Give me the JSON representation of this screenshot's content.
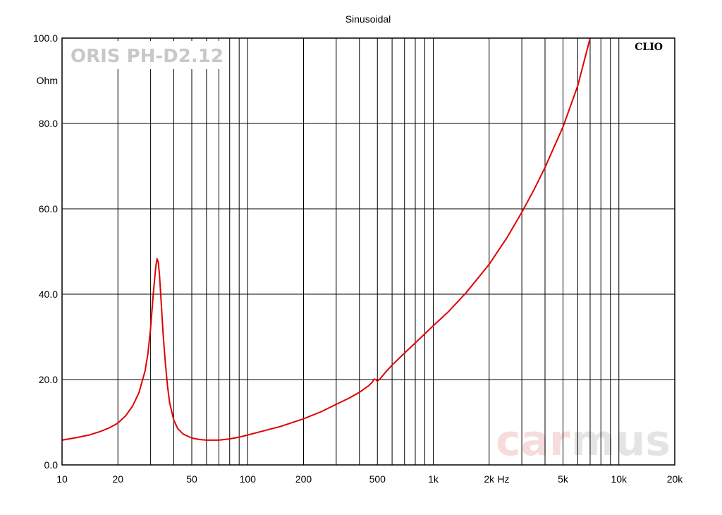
{
  "chart_data": {
    "type": "line",
    "title": "Sinusoidal",
    "brand": "CLIO",
    "model": "ORIS PH-D2.12",
    "watermark": {
      "part1": "car",
      "part2": "mus"
    },
    "xlabel": "Hz",
    "ylabel": "Ohm",
    "x_scale": "log",
    "xlim": [
      10,
      20000
    ],
    "ylim": [
      0,
      100
    ],
    "grid": true,
    "x_ticks": [
      10,
      20,
      50,
      100,
      200,
      500,
      1000,
      2000,
      5000,
      10000,
      20000
    ],
    "x_tick_labels": [
      "10",
      "20",
      "50",
      "100",
      "200",
      "500",
      "1k",
      "2k",
      "5k",
      "10k",
      "20k"
    ],
    "y_ticks": [
      0,
      20,
      40,
      60,
      80,
      100
    ],
    "y_tick_labels": [
      "0.0",
      "20.0",
      "40.0",
      "60.0",
      "80.0",
      "100.0"
    ],
    "series": [
      {
        "color": "#e00000",
        "x": [
          10,
          12,
          14,
          16,
          18,
          20,
          22,
          24,
          26,
          28,
          29,
          30,
          31,
          32,
          32.5,
          33,
          33.5,
          34,
          35,
          36,
          37,
          38,
          40,
          42,
          45,
          50,
          55,
          60,
          70,
          80,
          90,
          100,
          120,
          150,
          200,
          250,
          300,
          350,
          400,
          450,
          470,
          480,
          490,
          500,
          520,
          550,
          600,
          700,
          800,
          1000,
          1200,
          1500,
          2000,
          2500,
          3000,
          3500,
          4000,
          5000,
          6000,
          7000
        ],
        "y": [
          5.8,
          6.4,
          7.0,
          7.8,
          8.7,
          9.8,
          11.5,
          13.8,
          17.0,
          22.0,
          26.0,
          32.0,
          40.0,
          46.5,
          48.3,
          47.5,
          44.5,
          40.0,
          31.0,
          24.0,
          18.5,
          14.5,
          10.5,
          8.5,
          7.2,
          6.3,
          5.95,
          5.8,
          5.8,
          6.1,
          6.5,
          7.0,
          7.9,
          9.0,
          10.8,
          12.5,
          14.2,
          15.6,
          17.0,
          18.6,
          19.4,
          20.1,
          20.0,
          19.6,
          20.3,
          21.6,
          23.4,
          26.2,
          28.6,
          32.6,
          35.8,
          40.3,
          47.0,
          53.3,
          59.2,
          64.6,
          69.7,
          79.2,
          88.8,
          100.0
        ]
      }
    ]
  }
}
